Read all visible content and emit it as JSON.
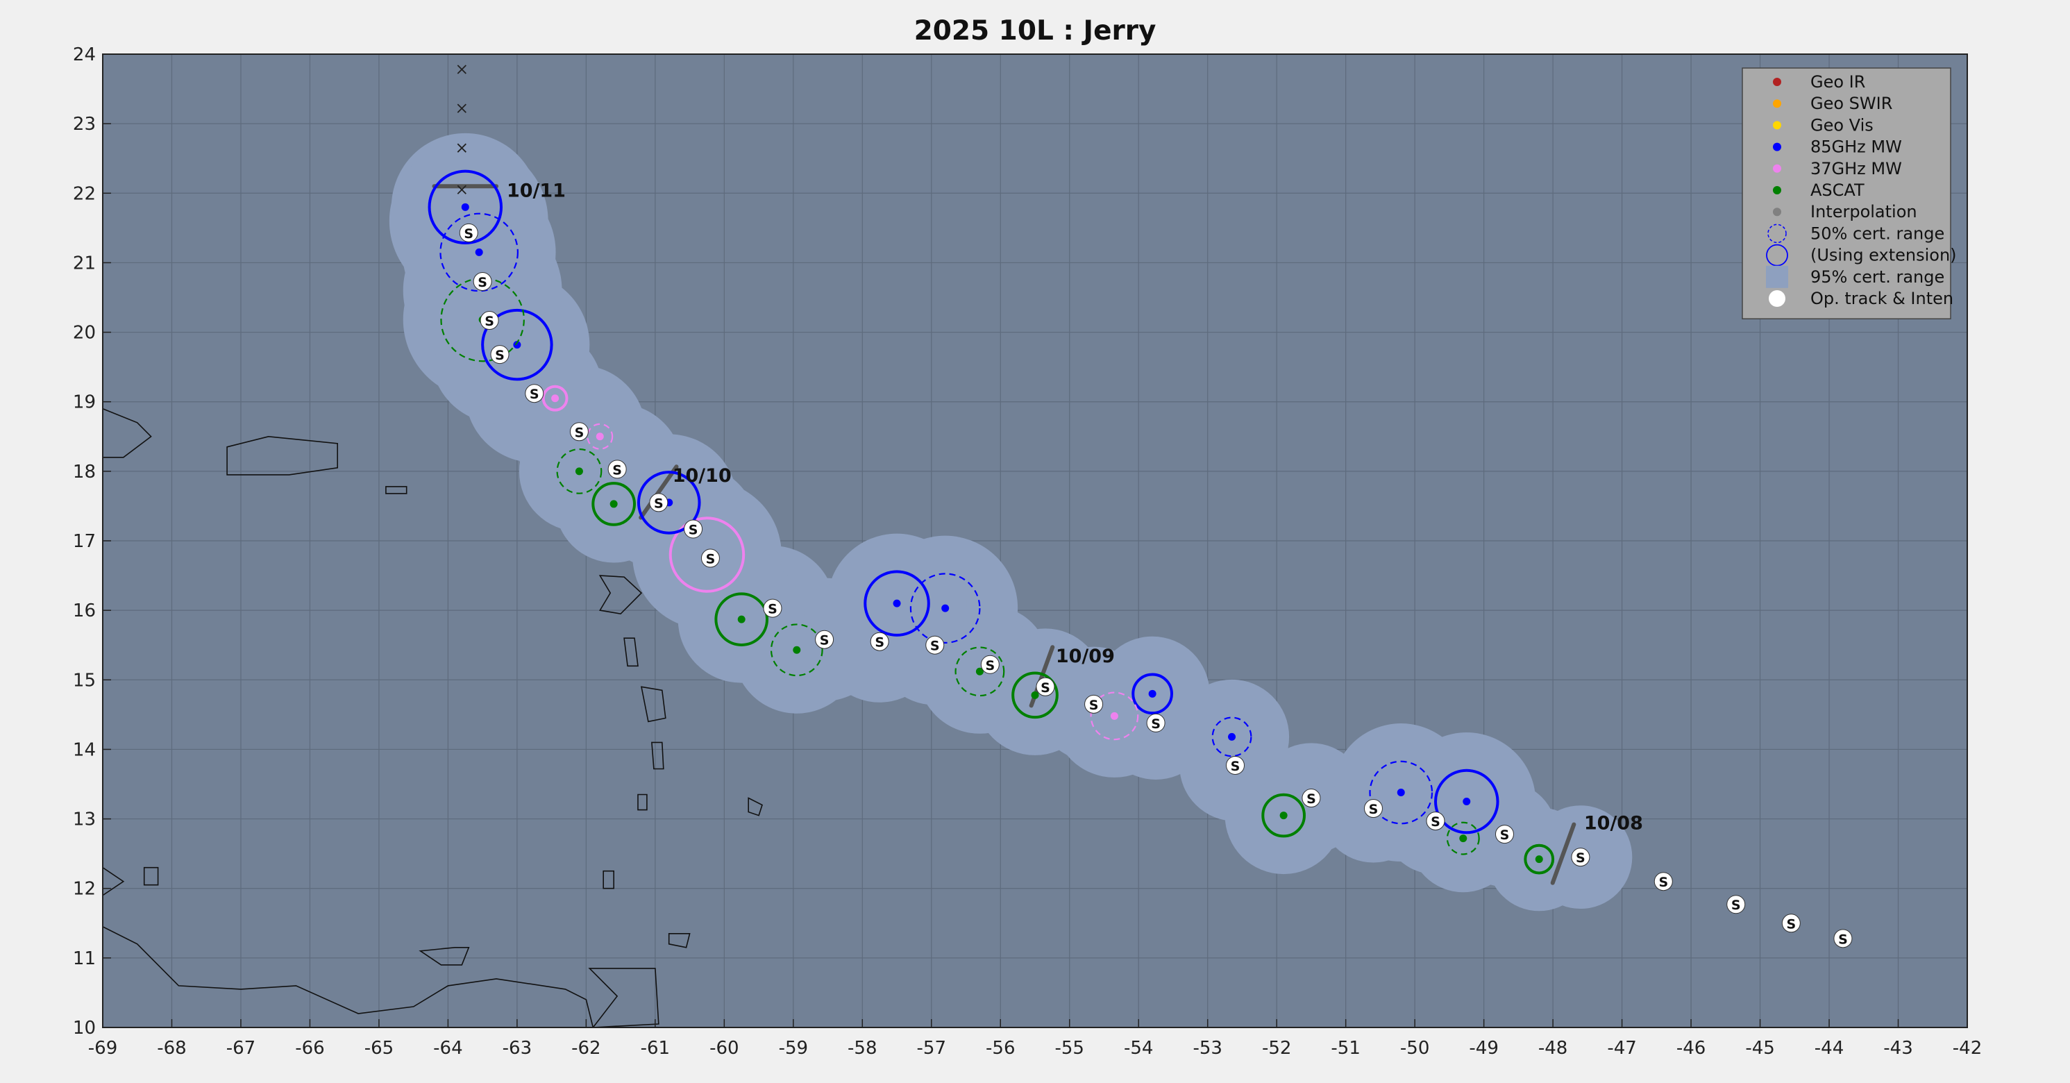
{
  "title": "2025  10L :  Jerry",
  "chart_data": {
    "type": "scatter",
    "xlim": [
      -69,
      -42
    ],
    "ylim": [
      10,
      24
    ],
    "xticks": [
      -69,
      -68,
      -67,
      -66,
      -65,
      -64,
      -63,
      -62,
      -61,
      -60,
      -59,
      -58,
      -57,
      -56,
      -55,
      -54,
      -53,
      -52,
      -51,
      -50,
      -49,
      -48,
      -47,
      -46,
      -45,
      -44,
      -43,
      -42
    ],
    "yticks": [
      10,
      11,
      12,
      13,
      14,
      15,
      16,
      17,
      18,
      19,
      20,
      21,
      22,
      23,
      24
    ],
    "grid": true,
    "legend_placement": "top-right",
    "legend": [
      {
        "label": "Geo IR",
        "kind": "dot",
        "color": "#b22222"
      },
      {
        "label": "Geo SWIR",
        "kind": "dot",
        "color": "#ffa500"
      },
      {
        "label": "Geo Vis",
        "kind": "dot",
        "color": "#ffd700"
      },
      {
        "label": "85GHz MW",
        "kind": "dot",
        "color": "#0000ff"
      },
      {
        "label": "37GHz MW",
        "kind": "dot",
        "color": "#ee82ee"
      },
      {
        "label": "ASCAT",
        "kind": "dot",
        "color": "#008000"
      },
      {
        "label": "Interpolation",
        "kind": "dot",
        "color": "#808080"
      },
      {
        "label": "50% cert. range",
        "kind": "dashcircle",
        "color": "#0000ff"
      },
      {
        "label": "(Using extension)",
        "kind": "solidcircle",
        "color": "#0000ff"
      },
      {
        "label": "95% cert. range",
        "kind": "square",
        "color": "#8ea0bf"
      },
      {
        "label": "Op. track & Inten",
        "kind": "white",
        "color": "#ffffff"
      }
    ],
    "date_labels": [
      {
        "text": "10/08",
        "lon": -47.55,
        "lat": 12.95
      },
      {
        "text": "10/09",
        "lon": -55.2,
        "lat": 15.35
      },
      {
        "text": "10/10",
        "lon": -60.75,
        "lat": 17.95
      },
      {
        "text": "10/11",
        "lon": -63.15,
        "lat": 22.05
      }
    ],
    "date_ticks": [
      {
        "lon": -47.85,
        "lat": 12.5,
        "angle": 70
      },
      {
        "lon": -55.4,
        "lat": 15.05,
        "angle": 70
      },
      {
        "lon": -60.95,
        "lat": 17.7,
        "angle": 55
      },
      {
        "lon": -63.75,
        "lat": 22.1,
        "angle": 0
      }
    ],
    "fixes": [
      {
        "lon": -48.2,
        "lat": 12.42,
        "r": 0.2,
        "color": "#008000",
        "style": "solid"
      },
      {
        "lon": -49.25,
        "lat": 13.25,
        "r": 0.45,
        "color": "#0000ff",
        "style": "solid"
      },
      {
        "lon": -49.3,
        "lat": 12.72,
        "r": 0.23,
        "color": "#008000",
        "style": "dash"
      },
      {
        "lon": -50.2,
        "lat": 13.38,
        "r": 0.45,
        "color": "#0000ff",
        "style": "dash"
      },
      {
        "lon": -51.9,
        "lat": 13.05,
        "r": 0.3,
        "color": "#008000",
        "style": "solid"
      },
      {
        "lon": -52.65,
        "lat": 14.18,
        "r": 0.28,
        "color": "#0000ff",
        "style": "dash"
      },
      {
        "lon": -53.8,
        "lat": 14.8,
        "r": 0.28,
        "color": "#0000ff",
        "style": "solid"
      },
      {
        "lon": -54.35,
        "lat": 14.48,
        "r": 0.34,
        "color": "#ee82ee",
        "style": "dash"
      },
      {
        "lon": -55.5,
        "lat": 14.78,
        "r": 0.32,
        "color": "#008000",
        "style": "solid"
      },
      {
        "lon": -56.3,
        "lat": 15.12,
        "r": 0.35,
        "color": "#008000",
        "style": "dash"
      },
      {
        "lon": -56.8,
        "lat": 16.03,
        "r": 0.5,
        "color": "#0000ff",
        "style": "dash"
      },
      {
        "lon": -57.5,
        "lat": 16.1,
        "r": 0.46,
        "color": "#0000ff",
        "style": "solid"
      },
      {
        "lon": -58.95,
        "lat": 15.43,
        "r": 0.37,
        "color": "#008000",
        "style": "dash"
      },
      {
        "lon": -59.75,
        "lat": 15.87,
        "r": 0.37,
        "color": "#008000",
        "style": "solid"
      },
      {
        "lon": -60.25,
        "lat": 16.8,
        "r": 0.53,
        "color": "#ee82ee",
        "style": "solid"
      },
      {
        "lon": -60.8,
        "lat": 17.55,
        "r": 0.44,
        "color": "#0000ff",
        "style": "solid"
      },
      {
        "lon": -61.6,
        "lat": 17.53,
        "r": 0.3,
        "color": "#008000",
        "style": "solid"
      },
      {
        "lon": -62.1,
        "lat": 18.0,
        "r": 0.32,
        "color": "#008000",
        "style": "dash"
      },
      {
        "lon": -61.8,
        "lat": 18.5,
        "r": 0.18,
        "color": "#ee82ee",
        "style": "dash"
      },
      {
        "lon": -62.45,
        "lat": 19.05,
        "r": 0.17,
        "color": "#ee82ee",
        "style": "solid"
      },
      {
        "lon": -63.0,
        "lat": 19.82,
        "r": 0.5,
        "color": "#0000ff",
        "style": "solid"
      },
      {
        "lon": -63.5,
        "lat": 20.18,
        "r": 0.6,
        "color": "#008000",
        "style": "dash"
      },
      {
        "lon": -63.55,
        "lat": 21.15,
        "r": 0.56,
        "color": "#0000ff",
        "style": "dash"
      },
      {
        "lon": -63.75,
        "lat": 21.8,
        "r": 0.52,
        "color": "#0000ff",
        "style": "solid"
      }
    ],
    "op_track": [
      {
        "lon": -43.8,
        "lat": 11.28
      },
      {
        "lon": -44.55,
        "lat": 11.5
      },
      {
        "lon": -45.35,
        "lat": 11.77
      },
      {
        "lon": -46.4,
        "lat": 12.1
      },
      {
        "lon": -47.6,
        "lat": 12.45
      },
      {
        "lon": -48.7,
        "lat": 12.78
      },
      {
        "lon": -49.7,
        "lat": 12.97
      },
      {
        "lon": -50.6,
        "lat": 13.15
      },
      {
        "lon": -51.5,
        "lat": 13.3
      },
      {
        "lon": -52.6,
        "lat": 13.77
      },
      {
        "lon": -53.75,
        "lat": 14.38
      },
      {
        "lon": -54.65,
        "lat": 14.65
      },
      {
        "lon": -55.35,
        "lat": 14.9
      },
      {
        "lon": -56.15,
        "lat": 15.22
      },
      {
        "lon": -56.95,
        "lat": 15.5
      },
      {
        "lon": -57.75,
        "lat": 15.55
      },
      {
        "lon": -58.55,
        "lat": 15.58
      },
      {
        "lon": -59.3,
        "lat": 16.03
      },
      {
        "lon": -60.2,
        "lat": 16.75
      },
      {
        "lon": -60.45,
        "lat": 17.17
      },
      {
        "lon": -60.95,
        "lat": 17.55
      },
      {
        "lon": -61.55,
        "lat": 18.03
      },
      {
        "lon": -62.1,
        "lat": 18.57
      },
      {
        "lon": -62.75,
        "lat": 19.12
      },
      {
        "lon": -63.25,
        "lat": 19.68
      },
      {
        "lon": -63.4,
        "lat": 20.17
      },
      {
        "lon": -63.5,
        "lat": 20.73
      },
      {
        "lon": -63.7,
        "lat": 21.43
      }
    ],
    "prior_positions": [
      {
        "lon": -63.8,
        "lat": 23.78
      },
      {
        "lon": -63.8,
        "lat": 23.22
      },
      {
        "lon": -63.8,
        "lat": 22.65
      },
      {
        "lon": -63.8,
        "lat": 22.05
      }
    ],
    "ocean_color": "#728196",
    "cone_color": "#8ea0bf",
    "legend_bg": "#a9a9a9"
  }
}
